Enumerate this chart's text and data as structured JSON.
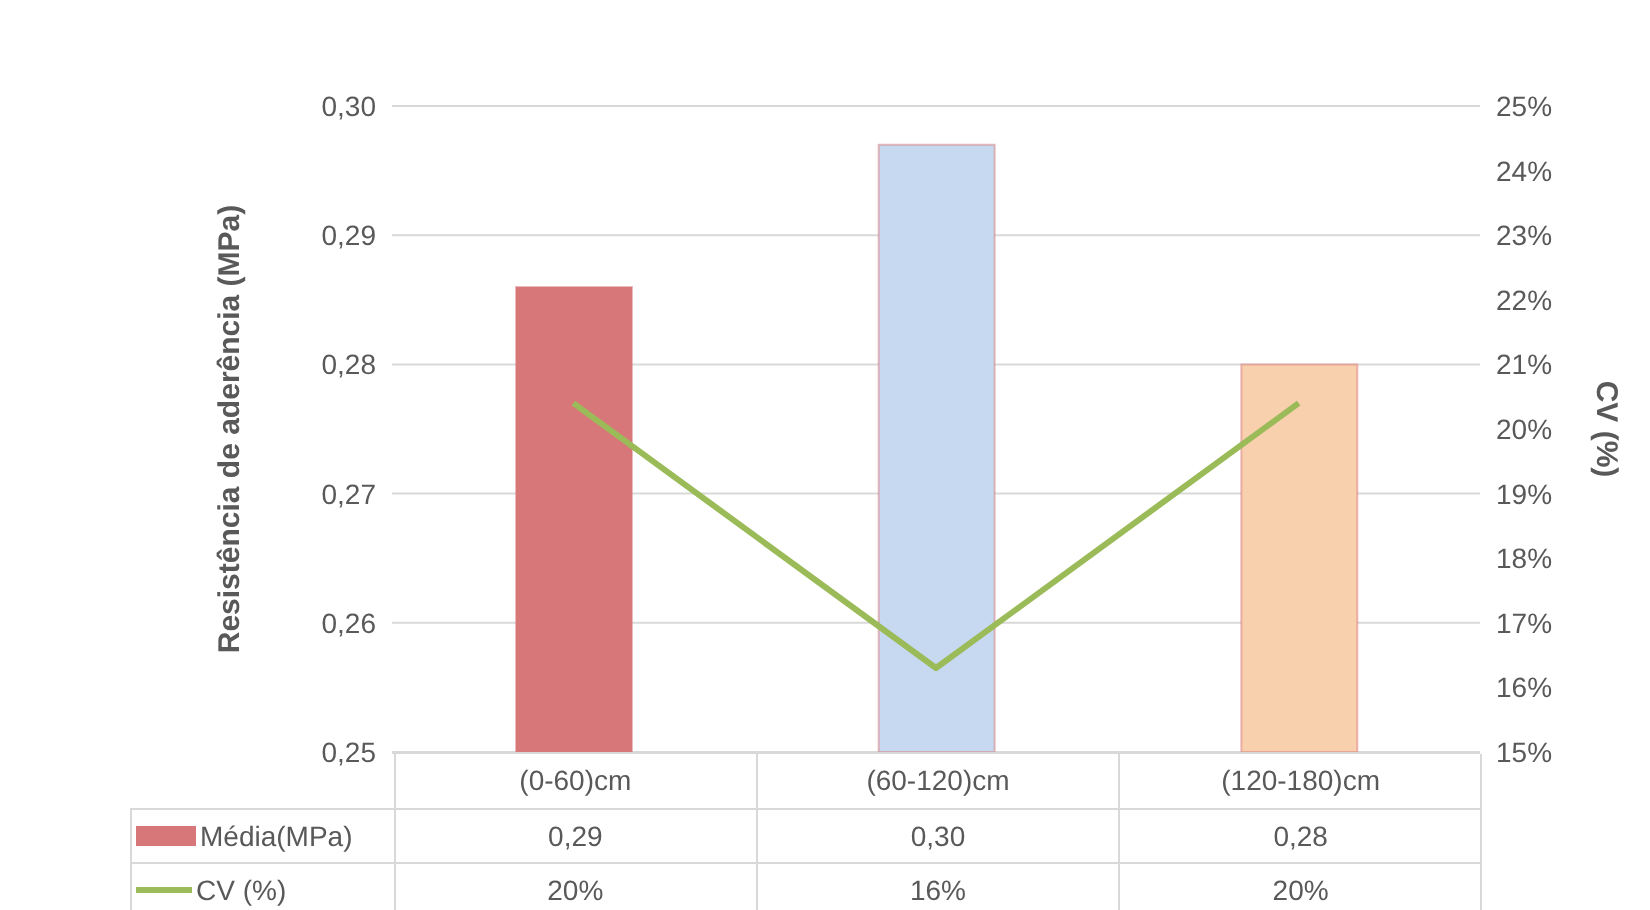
{
  "chart_data": {
    "type": "bar",
    "categories": [
      "(0-60)cm",
      "(60-120)cm",
      "(120-180)cm"
    ],
    "series": [
      {
        "name": "Média(MPa)",
        "colors": [
          "#d7777a",
          "#c6d9f0",
          "#f9d0ae"
        ],
        "color": "#d7777a",
        "values": [
          0.286,
          0.297,
          0.28
        ],
        "value_labels": [
          "0,29",
          "0,30",
          "0,28"
        ]
      },
      {
        "name": "CV (%)",
        "type": "line",
        "axis": "y2",
        "color": "#9bbb59",
        "values": [
          20.4,
          16.3,
          20.4
        ],
        "value_labels": [
          "20%",
          "16%",
          "20%"
        ]
      }
    ],
    "ylabel": "Resistência de aderência (MPa)",
    "y2label": "CV (%)",
    "ylim": [
      0.25,
      0.3
    ],
    "yticks": [
      {
        "value": 0.25,
        "label": "0,25"
      },
      {
        "value": 0.26,
        "label": "0,26"
      },
      {
        "value": 0.27,
        "label": "0,27"
      },
      {
        "value": 0.28,
        "label": "0,28"
      },
      {
        "value": 0.29,
        "label": "0,29"
      },
      {
        "value": 0.3,
        "label": "0,30"
      }
    ],
    "y2lim": [
      15,
      25
    ],
    "y2ticks": [
      {
        "value": 15,
        "label": "15%"
      },
      {
        "value": 16,
        "label": "16%"
      },
      {
        "value": 17,
        "label": "17%"
      },
      {
        "value": 18,
        "label": "18%"
      },
      {
        "value": 19,
        "label": "19%"
      },
      {
        "value": 20,
        "label": "20%"
      },
      {
        "value": 21,
        "label": "21%"
      },
      {
        "value": 22,
        "label": "22%"
      },
      {
        "value": 23,
        "label": "23%"
      },
      {
        "value": 24,
        "label": "24%"
      },
      {
        "value": 25,
        "label": "25%"
      }
    ],
    "grid": "y",
    "legend": "bottom left",
    "marker": "none",
    "line_style": "solid"
  }
}
